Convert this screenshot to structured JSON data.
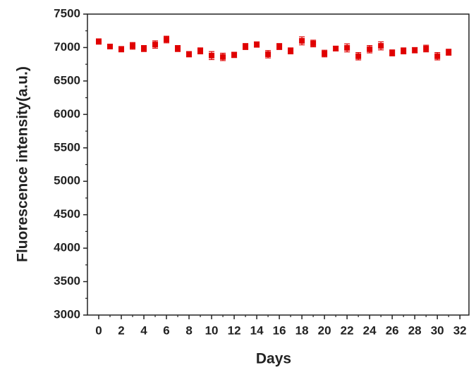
{
  "chart_data": {
    "type": "scatter",
    "x_label": "Days",
    "y_label": "Fluorescence intensity(a.u.)",
    "x": [
      0,
      1,
      2,
      3,
      4,
      5,
      6,
      7,
      8,
      9,
      10,
      11,
      12,
      13,
      14,
      15,
      16,
      17,
      18,
      19,
      20,
      21,
      22,
      23,
      24,
      25,
      26,
      27,
      28,
      29,
      30,
      31
    ],
    "series": [
      {
        "color": "#e00000",
        "values": [
          7090,
          7015,
          6975,
          7025,
          6985,
          7045,
          7120,
          6985,
          6900,
          6950,
          6880,
          6860,
          6890,
          7015,
          7045,
          6900,
          7015,
          6950,
          7100,
          7060,
          6910,
          6985,
          6995,
          6870,
          6975,
          7025,
          6920,
          6950,
          6960,
          6985,
          6870,
          6930
        ],
        "errors": [
          40,
          30,
          40,
          50,
          45,
          55,
          50,
          45,
          40,
          45,
          60,
          55,
          40,
          45,
          40,
          55,
          45,
          45,
          60,
          50,
          50,
          35,
          60,
          55,
          55,
          60,
          45,
          45,
          40,
          50,
          55,
          45
        ]
      }
    ],
    "xlim": [
      -1,
      32.8
    ],
    "xticks": [
      0,
      2,
      4,
      6,
      8,
      10,
      12,
      14,
      16,
      18,
      20,
      22,
      24,
      26,
      28,
      30,
      32
    ],
    "xminorticks": [
      1,
      3,
      5,
      7,
      9,
      11,
      13,
      15,
      17,
      19,
      21,
      23,
      25,
      27,
      29,
      31
    ],
    "ylim": [
      3000,
      7500
    ],
    "yticks": [
      3000,
      3500,
      4000,
      4500,
      5000,
      5500,
      6000,
      6500,
      7000,
      7500
    ],
    "yminorticks": [
      3250,
      3750,
      4250,
      4750,
      5250,
      5750,
      6250,
      6750,
      7250
    ]
  }
}
